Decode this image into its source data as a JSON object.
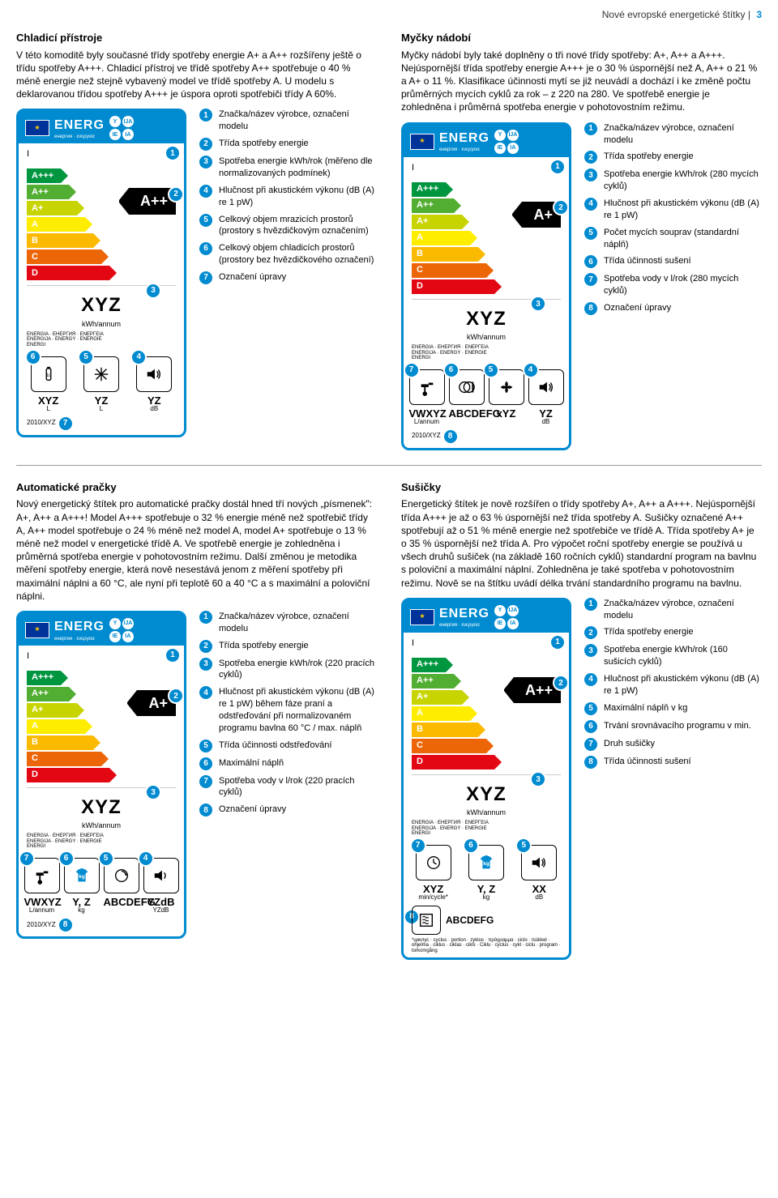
{
  "header": {
    "text": "Nové evropské energetické štítky |",
    "page": "3"
  },
  "colors": {
    "brand": "#008bd0",
    "arrows": [
      "#009640",
      "#52ae32",
      "#c8d400",
      "#ffed00",
      "#fbba00",
      "#ec6608",
      "#e30613"
    ]
  },
  "sections": [
    {
      "left": {
        "title": "Chladicí přístroje",
        "body": "V této komoditě byly současné třídy spotřeby energie A+ a A++ rozšířeny ještě o třídu spotřeby A+++. Chladicí přístroj ve třídě spotřeby A++ spotřebuje o 40 % méně energie než stejně vybavený model ve třídě spotřeby A. U modelu s deklarovanou třídou spotřeby A+++ je úspora oproti spotřebiči třídy A 60%.",
        "label": {
          "classes": [
            "A+++",
            "A++",
            "A+",
            "A",
            "B",
            "C",
            "D"
          ],
          "big_class": "A++",
          "kwh": "XYZ",
          "kwh_unit": "kWh/annum",
          "vals": [
            {
              "v": "XYZ",
              "u": "L"
            },
            {
              "v": "YZ",
              "u": "L"
            },
            {
              "v": "YZ",
              "u": "dB"
            }
          ],
          "icons": [
            "bottle",
            "snowflake",
            "sound"
          ],
          "reg": "2010/XYZ",
          "pins": {
            "brand": 1,
            "class": 2,
            "kwh": 3,
            "icon0": 6,
            "icon1": 5,
            "icon2": 4,
            "reg": 7
          }
        },
        "legend": [
          "Značka/název výrobce, označení modelu",
          "Třída spotřeby energie",
          "Spotřeba energie kWh/rok (měřeno dle normalizovaných podmínek)",
          "Hlučnost při akustickém výkonu (dB (A) re 1 pW)",
          "Celkový objem mrazicích prostorů (prostory s hvězdičkovým označením)",
          "Celkový objem chladicích prostorů (prostory bez hvězdičkového označení)",
          "Označení úpravy"
        ]
      },
      "right": {
        "title": "Myčky nádobí",
        "body": "Myčky nádobí byly také doplněny o tři nové třídy spotřeby: A+, A++ a A+++. Nejúspornější třída spotřeby energie A+++ je o 30 % úspornější než A, A++ o 21 % a A+ o 11 %. Klasifikace účinnosti mytí se již neuvádí a dochází i ke změně počtu průměrných mycích cyklů za rok – z 220 na 280. Ve spotřebě energie je zohledněna i průměrná spotřeba energie v pohotovostním režimu.",
        "label": {
          "classes": [
            "A+++",
            "A++",
            "A+",
            "A",
            "B",
            "C",
            "D"
          ],
          "big_class": "A+",
          "kwh": "XYZ",
          "kwh_unit": "kWh/annum",
          "vals": [
            {
              "v": "VWXYZ",
              "u": "L/annum"
            },
            {
              "v": "ABCDEFG",
              "u": ""
            },
            {
              "v": "xYZ",
              "u": ""
            },
            {
              "v": "YZ",
              "u": "dB"
            }
          ],
          "icons": [
            "tap",
            "plates",
            "fan",
            "sound"
          ],
          "reg": "2010/XYZ",
          "pins": {
            "brand": 1,
            "class": 2,
            "kwh": 3,
            "icon0": 7,
            "icon1": 6,
            "icon2": 5,
            "icon3": 4,
            "reg": 8
          }
        },
        "legend": [
          "Značka/název výrobce, označení modelu",
          "Třída spotřeby energie",
          "Spotřeba energie kWh/rok (280 mycích cyklů)",
          "Hlučnost při akustickém výkonu (dB (A) re 1 pW)",
          "Počet mycích souprav (standardní náplň)",
          "Třída účinnosti sušení",
          "Spotřeba vody v l/rok (280 mycích cyklů)",
          "Označení úpravy"
        ]
      }
    },
    {
      "left": {
        "title": "Automatické pračky",
        "body": "Nový energetický štítek pro automatické pračky dostál hned tří nových „písmenek\": A+, A++ a A+++! Model A+++ spotřebuje o 32 % energie méně než spotřebič třídy A, A++ model spotřebuje o 24 % méně než model A, model A+ spotřebuje o 13 % méně než model v energetické třídě A. Ve spotřebě energie je zohledněna i průměrná spotřeba energie v pohotovostním režimu. Další změnou je metodika měření spotřeby energie, která nově nesestává jenom z měření spotřeby při maximální náplni a 60 °C, ale nyní při teplotě 60 a 40 °C a s maximální a poloviční náplni.",
        "label": {
          "classes": [
            "A+++",
            "A++",
            "A+",
            "A",
            "B",
            "C",
            "D"
          ],
          "big_class": "A+",
          "kwh": "XYZ",
          "kwh_unit": "kWh/annum",
          "vals": [
            {
              "v": "VWXYZ",
              "u": "L/annum"
            },
            {
              "v": "Y, Z",
              "u": "kg"
            },
            {
              "v": "ABCDEFG",
              "u": ""
            },
            {
              "v": "YZdB",
              "u": "YZdB"
            }
          ],
          "icons": [
            "tap",
            "shirt-kg",
            "spin",
            "sound2"
          ],
          "reg": "2010/XYZ",
          "pins": {
            "brand": 1,
            "class": 2,
            "kwh": 3,
            "icon0": 7,
            "icon1": 6,
            "icon2": 5,
            "icon3": 4,
            "reg": 8
          }
        },
        "legend": [
          "Značka/název výrobce, označení modelu",
          "Třída spotřeby energie",
          "Spotřeba energie kWh/rok (220 pracích cyklů)",
          "Hlučnost při akustickém výkonu (dB (A) re 1 pW) během fáze praní a odstřeďování při normalizovaném programu bavlna 60 °C / max. náplň",
          "Třída účinnosti odstřeďování",
          "Maximální náplň",
          "Spotřeba vody v l/rok (220 pracích cyklů)",
          "Označení úpravy"
        ]
      },
      "right": {
        "title": "Sušičky",
        "body": "Energetický štítek je nově rozšířen o třídy spotřeby A+, A++ a A+++. Nejúspornější třída A+++ je až o 63 % úspornější než třída spotřeby A. Sušičky označené A++ spotřebují až o 51 % méně energie než spotřebiče ve třídě A. Třída spotřeby A+ je o 35 % úspornější než třída A. Pro výpočet roční spotřeby energie se používá u všech druhů sušiček (na základě 160 ročních cyklů) standardní program na bavlnu s poloviční a maximální náplní. Zohledněna je také spotřeba v pohotovostním režimu. Nově se na štítku uvádí délka trvání standardního programu na bavlnu.",
        "label": {
          "classes": [
            "A+++",
            "A++",
            "A+",
            "A",
            "B",
            "C",
            "D"
          ],
          "big_class": "A++",
          "kwh": "XYZ",
          "kwh_unit": "kWh/annum",
          "vals": [
            {
              "v": "XYZ",
              "u": "min/cycle*"
            },
            {
              "v": "Y, Z",
              "u": "kg"
            },
            {
              "v": "XX",
              "u": "dB"
            }
          ],
          "icons": [
            "clock",
            "shirt-kg",
            "sound"
          ],
          "extra_icon": "dryer-type",
          "extra_val": "ABCDEFG",
          "reg": "",
          "footnote": "*циклус · cyclus · portion · zyklus · πρόγραμμα · ciclo · tsükkel · ohjelma · ciklus · ciklas · cikls · Ciklu · cyclus · cykl · ciclu · program · torkomgång",
          "pins": {
            "brand": 1,
            "class": 2,
            "kwh": 3,
            "icon0": 7,
            "icon1": 6,
            "icon2": 5,
            "icon3": 4,
            "extra": 8
          }
        },
        "legend": [
          "Značka/název výrobce, označení modelu",
          "Třída spotřeby energie",
          "Spotřeba energie kWh/rok (160 sušicích cyklů)",
          "Hlučnost při akustickém výkonu (dB (A) re 1 pW)",
          "Maximální náplň v kg",
          "Trvání srovnávacího programu v min.",
          "Druh sušičky",
          "Třída účinnosti sušení"
        ]
      }
    }
  ],
  "label_strings": {
    "energ": "ENERG",
    "sub": "енергия · ενεργεια",
    "langs": [
      "Y",
      "IJA",
      "IE",
      "IA"
    ],
    "brand_i": "I",
    "brand_ii": "II",
    "energia": "ENERGIA · ЕНЕРГИЯ · ΕΝΕΡΓΕΙΑ\nENERGIJA · ENERGY · ENERGIE\nENERGI"
  }
}
